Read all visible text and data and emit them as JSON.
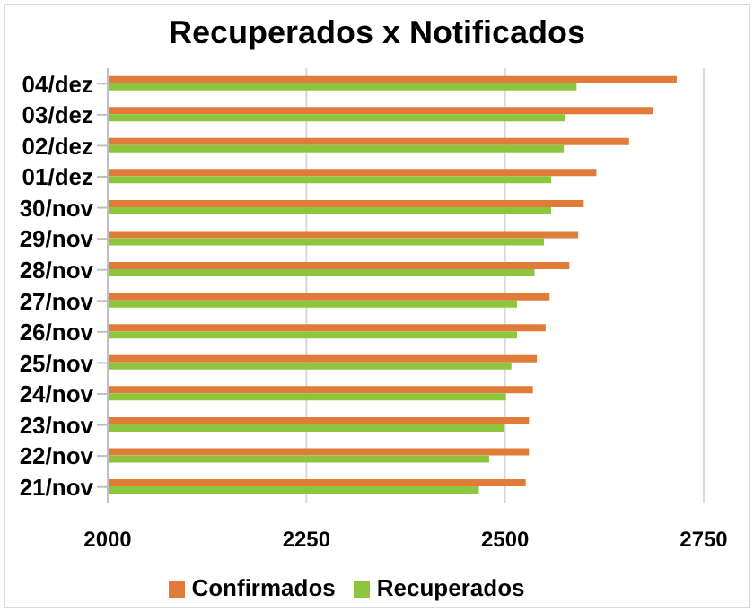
{
  "chart_data": {
    "type": "bar",
    "orientation": "horizontal",
    "title": "Recuperados x Notificados",
    "categories": [
      "04/dez",
      "03/dez",
      "02/dez",
      "01/dez",
      "30/nov",
      "29/nov",
      "28/nov",
      "27/nov",
      "26/nov",
      "25/nov",
      "24/nov",
      "23/nov",
      "22/nov",
      "21/nov"
    ],
    "series": [
      {
        "name": "Confirmados",
        "color": "#e07b39",
        "values": [
          2716,
          2686,
          2656,
          2615,
          2599,
          2592,
          2581,
          2556,
          2551,
          2540,
          2535,
          2530,
          2530,
          2526
        ]
      },
      {
        "name": "Recuperados",
        "color": "#8cc63f",
        "values": [
          2590,
          2576,
          2574,
          2558,
          2558,
          2549,
          2537,
          2515,
          2515,
          2508,
          2501,
          2499,
          2480,
          2467
        ]
      }
    ],
    "xlim": [
      2000,
      2750
    ],
    "xticks": [
      2000,
      2250,
      2500,
      2750
    ],
    "grid": "x",
    "legend": "bottom"
  }
}
